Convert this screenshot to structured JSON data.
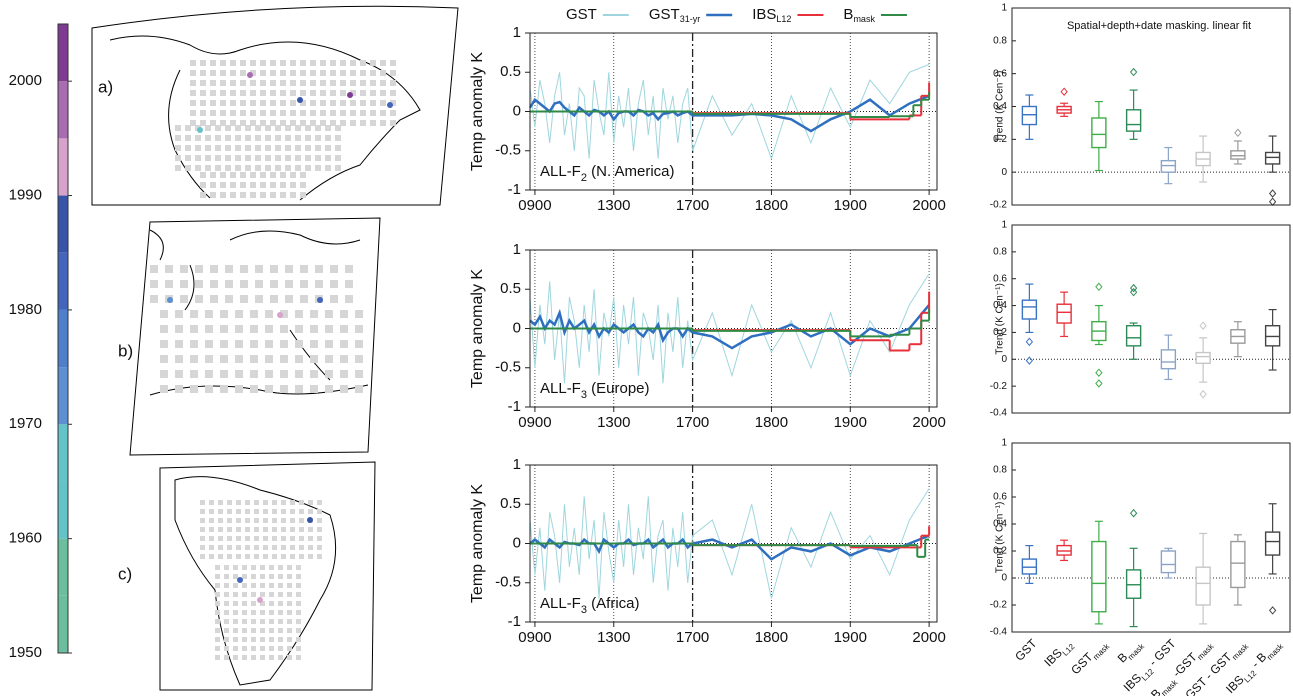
{
  "maps": [
    {
      "label": "a)"
    },
    {
      "label": "b)"
    },
    {
      "label": "c)"
    }
  ],
  "chart_data": [
    {
      "type": "colorbar",
      "lim": [
        1950,
        2005
      ],
      "ticks": [
        1950,
        1960,
        1970,
        1980,
        1990,
        2000
      ],
      "bounds": [
        1950,
        1955,
        1960,
        1965,
        1970,
        1975,
        1980,
        1985,
        1990,
        1995,
        2000,
        2005
      ],
      "colors": [
        "#6bbf9e",
        "#6bbf9e",
        "#64c3c8",
        "#64c3c8",
        "#5c90d2",
        "#4f7ecb",
        "#4366bc",
        "#3754a8",
        "#d7a3cc",
        "#a96cb0",
        "#7e3b91"
      ]
    },
    {
      "type": "line",
      "ylabel": "Temp anomaly K",
      "annotation": [
        {
          "t": "ALL-F",
          "sub": "2"
        },
        {
          "t": " (N. America)"
        }
      ],
      "legend": true,
      "xlim": [
        875,
        2010
      ],
      "ylim": [
        -1,
        1
      ],
      "xticks": [
        {
          "value": 900,
          "label": "0900"
        },
        1300,
        1700,
        1800,
        1900,
        2000
      ],
      "yticks": [
        -1,
        -0.5,
        0,
        0.5,
        1
      ],
      "dashdot_x": 1700,
      "zero_line": true,
      "x": [
        875,
        900,
        925,
        950,
        975,
        1000,
        1025,
        1050,
        1075,
        1100,
        1125,
        1150,
        1175,
        1200,
        1225,
        1250,
        1275,
        1300,
        1325,
        1350,
        1375,
        1400,
        1425,
        1450,
        1475,
        1500,
        1525,
        1550,
        1575,
        1600,
        1625,
        1650,
        1675,
        1700,
        1725,
        1750,
        1775,
        1800,
        1825,
        1850,
        1875,
        1900,
        1925,
        1950,
        1975,
        2000
      ],
      "series": [
        {
          "name": "GST",
          "color": "#9fd6de",
          "width": 1,
          "values": [
            0.3,
            -0.2,
            0.4,
            0.1,
            -0.4,
            0.2,
            0.5,
            -0.3,
            0.1,
            -0.5,
            0.3,
            0.2,
            -0.6,
            0.4,
            0.0,
            -0.3,
            0.5,
            -0.4,
            0.2,
            -0.2,
            0.3,
            -0.5,
            0.1,
            0.4,
            -0.3,
            0.2,
            -0.6,
            0.3,
            -0.1,
            0.2,
            -0.4,
            0.1,
            0.3,
            -0.5,
            0.2,
            -0.3,
            0.1,
            -0.6,
            0.2,
            -0.4,
            0.3,
            -0.2,
            0.4,
            0.1,
            0.5,
            0.6
          ]
        },
        {
          "name": "GST",
          "name_sub": "31-yr",
          "color": "#2f6fc0",
          "width": 2.5,
          "values": [
            0.05,
            0.15,
            0.1,
            0.05,
            0.0,
            0.1,
            0.12,
            0.05,
            0.0,
            -0.05,
            0.05,
            0.0,
            -0.05,
            0.02,
            0.0,
            -0.05,
            0.0,
            -0.1,
            -0.02,
            0.0,
            0.0,
            -0.05,
            0.02,
            0.0,
            -0.05,
            -0.02,
            -0.1,
            -0.03,
            -0.02,
            0.0,
            -0.05,
            -0.02,
            0.0,
            -0.05,
            -0.05,
            -0.05,
            -0.03,
            -0.05,
            -0.1,
            -0.25,
            -0.1,
            0.0,
            0.15,
            -0.05,
            0.1,
            0.2
          ]
        },
        {
          "name": "IBS",
          "name_sub": "L12",
          "color": "#e8303a",
          "width": 2,
          "step": true,
          "x": [
            875,
            1700,
            1900,
            1950,
            1975,
            1990,
            2000
          ],
          "values": [
            0,
            -0.02,
            -0.1,
            -0.1,
            -0.05,
            0.2,
            0.37
          ]
        },
        {
          "name": "B",
          "name_sub": "mask",
          "color": "#2f8a45",
          "width": 2,
          "step": true,
          "x": [
            875,
            1700,
            1900,
            1950,
            1980,
            1990,
            2000
          ],
          "values": [
            0,
            -0.03,
            -0.07,
            -0.06,
            0.08,
            0.15,
            0.25
          ]
        }
      ]
    },
    {
      "type": "line",
      "ylabel": "Temp anomaly K",
      "annotation": [
        {
          "t": "ALL-F",
          "sub": "3"
        },
        {
          "t": " (Europe)"
        }
      ],
      "xlim": [
        875,
        2010
      ],
      "ylim": [
        -1,
        1
      ],
      "xticks": [
        {
          "value": 900,
          "label": "0900"
        },
        1300,
        1700,
        1800,
        1900,
        2000
      ],
      "yticks": [
        -1,
        -0.5,
        0,
        0.5,
        1
      ],
      "dashdot_x": 1700,
      "zero_line": true,
      "x": [
        875,
        900,
        925,
        950,
        975,
        1000,
        1025,
        1050,
        1075,
        1100,
        1125,
        1150,
        1175,
        1200,
        1225,
        1250,
        1275,
        1300,
        1325,
        1350,
        1375,
        1400,
        1425,
        1450,
        1475,
        1500,
        1525,
        1550,
        1575,
        1600,
        1625,
        1650,
        1675,
        1700,
        1725,
        1750,
        1775,
        1800,
        1825,
        1850,
        1875,
        1900,
        1925,
        1950,
        1975,
        2000
      ],
      "series": [
        {
          "name": "GST",
          "color": "#9fd6de",
          "width": 1,
          "values": [
            0.4,
            -0.5,
            0.3,
            -0.2,
            0.6,
            -0.4,
            0.2,
            -0.7,
            0.4,
            0.1,
            -0.5,
            0.3,
            -0.3,
            0.5,
            -0.6,
            0.2,
            -0.1,
            0.4,
            -0.5,
            0.3,
            -0.2,
            0.4,
            -0.6,
            0.2,
            0.0,
            -0.4,
            0.3,
            -0.7,
            0.2,
            -0.3,
            0.4,
            -0.5,
            0.1,
            -0.4,
            0.2,
            -0.6,
            0.3,
            -0.3,
            0.1,
            -0.5,
            0.2,
            -0.6,
            0.1,
            -0.3,
            0.3,
            0.7
          ]
        },
        {
          "name": "GST",
          "name_sub": "31-yr",
          "color": "#2f6fc0",
          "width": 2.5,
          "values": [
            0.1,
            0.05,
            0.15,
            0.0,
            0.1,
            0.05,
            0.2,
            -0.05,
            0.1,
            0.0,
            0.05,
            0.1,
            -0.05,
            0.05,
            -0.1,
            0.0,
            -0.05,
            0.05,
            0.0,
            -0.05,
            0.0,
            0.05,
            -0.05,
            -0.1,
            0.0,
            -0.05,
            0.05,
            -0.15,
            -0.05,
            0.0,
            0.0,
            -0.1,
            0.0,
            -0.05,
            -0.1,
            -0.25,
            -0.1,
            -0.05,
            0.05,
            -0.1,
            0.0,
            -0.2,
            0.0,
            -0.1,
            0.0,
            0.3
          ]
        },
        {
          "name": "IBS",
          "name_sub": "L12",
          "color": "#e8303a",
          "width": 2,
          "step": true,
          "x": [
            875,
            1700,
            1900,
            1950,
            1975,
            1990,
            2000
          ],
          "values": [
            0,
            -0.02,
            -0.15,
            -0.28,
            -0.2,
            0.2,
            0.47
          ]
        },
        {
          "name": "B",
          "name_sub": "mask",
          "color": "#2f8a45",
          "width": 2,
          "step": true,
          "x": [
            875,
            1700,
            1900,
            1950,
            1975,
            1990,
            2000
          ],
          "values": [
            0,
            -0.03,
            -0.1,
            -0.08,
            0.0,
            0.1,
            0.25
          ]
        }
      ]
    },
    {
      "type": "line",
      "ylabel": "Temp anomaly K",
      "annotation": [
        {
          "t": "ALL-F",
          "sub": "3"
        },
        {
          "t": " (Africa)"
        }
      ],
      "xlim": [
        875,
        2010
      ],
      "ylim": [
        -1,
        1
      ],
      "xticks": [
        {
          "value": 900,
          "label": "0900"
        },
        1300,
        1700,
        1800,
        1900,
        2000
      ],
      "yticks": [
        -1,
        -0.5,
        0,
        0.5,
        1
      ],
      "dashdot_x": 1700,
      "zero_line": true,
      "x": [
        875,
        900,
        925,
        950,
        975,
        1000,
        1025,
        1050,
        1075,
        1100,
        1125,
        1150,
        1175,
        1200,
        1225,
        1250,
        1275,
        1300,
        1325,
        1350,
        1375,
        1400,
        1425,
        1450,
        1475,
        1500,
        1525,
        1550,
        1575,
        1600,
        1625,
        1650,
        1675,
        1700,
        1725,
        1750,
        1775,
        1800,
        1825,
        1850,
        1875,
        1900,
        1925,
        1950,
        1975,
        2000
      ],
      "series": [
        {
          "name": "GST",
          "color": "#9fd6de",
          "width": 1,
          "values": [
            0.3,
            -0.4,
            0.2,
            -0.6,
            0.4,
            0.1,
            -0.5,
            0.5,
            -0.3,
            0.2,
            -0.4,
            0.6,
            -0.2,
            0.3,
            -0.7,
            0.4,
            -0.1,
            -0.5,
            0.3,
            -0.3,
            0.5,
            -0.4,
            0.2,
            -0.2,
            0.6,
            -0.5,
            0.1,
            0.3,
            -0.6,
            0.2,
            -0.3,
            0.4,
            -0.5,
            0.1,
            0.3,
            -0.4,
            0.5,
            -0.7,
            0.2,
            -0.3,
            0.4,
            -0.2,
            0.1,
            -0.4,
            0.3,
            0.7
          ]
        },
        {
          "name": "GST",
          "name_sub": "31-yr",
          "color": "#2f6fc0",
          "width": 2.5,
          "values": [
            0.0,
            0.05,
            0.0,
            -0.05,
            0.05,
            0.0,
            -0.05,
            0.02,
            0.0,
            0.0,
            -0.02,
            0.05,
            0.0,
            0.0,
            -0.1,
            0.05,
            0.0,
            -0.05,
            0.0,
            0.0,
            0.05,
            -0.02,
            0.0,
            0.0,
            0.05,
            -0.05,
            0.0,
            0.05,
            -0.05,
            0.0,
            0.0,
            0.05,
            -0.05,
            0.0,
            0.05,
            -0.05,
            0.05,
            -0.2,
            -0.05,
            -0.1,
            0.0,
            -0.15,
            -0.05,
            -0.1,
            0.0,
            0.1
          ]
        },
        {
          "name": "IBS",
          "name_sub": "L12",
          "color": "#e8303a",
          "width": 2,
          "step": true,
          "x": [
            875,
            1700,
            1900,
            1975,
            1990,
            2000
          ],
          "values": [
            0,
            -0.02,
            -0.05,
            -0.05,
            0.1,
            0.22
          ]
        },
        {
          "name": "B",
          "name_sub": "mask",
          "color": "#2f8a45",
          "width": 2,
          "step": true,
          "x": [
            875,
            1700,
            1900,
            1975,
            1985,
            1995,
            2000
          ],
          "values": [
            0,
            -0.02,
            -0.03,
            -0.02,
            -0.17,
            0.05,
            0.05
          ]
        }
      ]
    },
    {
      "type": "box",
      "title": "Spatial+depth+date masking.  linear fit",
      "ylabel": "Trend (K Cen⁻¹)",
      "ylim": [
        -0.2,
        1
      ],
      "yticks": [
        -0.2,
        0,
        0.2,
        0.4,
        0.6,
        0.8,
        1
      ],
      "zero_line": true,
      "colors": [
        "#3a73c3",
        "#e8303a",
        "#3fae49",
        "#2b8a56",
        "#8aa4c8",
        "#c6c6c6",
        "#9a9a9a",
        "#444444"
      ],
      "boxes": [
        {
          "min": 0.2,
          "q1": 0.29,
          "median": 0.35,
          "q3": 0.4,
          "max": 0.47
        },
        {
          "min": 0.34,
          "q1": 0.36,
          "median": 0.38,
          "q3": 0.4,
          "max": 0.42,
          "outliers": [
            0.49
          ]
        },
        {
          "min": 0.01,
          "q1": 0.15,
          "median": 0.23,
          "q3": 0.33,
          "max": 0.43
        },
        {
          "min": 0.2,
          "q1": 0.25,
          "median": 0.29,
          "q3": 0.38,
          "max": 0.5,
          "outliers": [
            0.61
          ]
        },
        {
          "min": -0.07,
          "q1": 0.0,
          "median": 0.04,
          "q3": 0.07,
          "max": 0.15
        },
        {
          "min": -0.06,
          "q1": 0.04,
          "median": 0.08,
          "q3": 0.12,
          "max": 0.22
        },
        {
          "min": 0.05,
          "q1": 0.08,
          "median": 0.1,
          "q3": 0.13,
          "max": 0.19,
          "outliers": [
            0.24
          ]
        },
        {
          "min": 0.0,
          "q1": 0.05,
          "median": 0.09,
          "q3": 0.12,
          "max": 0.22,
          "outliers": [
            -0.13,
            -0.18
          ]
        }
      ]
    },
    {
      "type": "box",
      "ylabel": "Trend (K Cen⁻¹)",
      "ylim": [
        -0.4,
        1
      ],
      "yticks": [
        -0.4,
        -0.2,
        0,
        0.2,
        0.4,
        0.6,
        0.8,
        1
      ],
      "zero_line": true,
      "colors": [
        "#3a73c3",
        "#e8303a",
        "#3fae49",
        "#2b8a56",
        "#8aa4c8",
        "#c6c6c6",
        "#9a9a9a",
        "#444444"
      ],
      "boxes": [
        {
          "min": 0.2,
          "q1": 0.3,
          "median": 0.39,
          "q3": 0.44,
          "max": 0.56,
          "outliers": [
            0.13,
            -0.01
          ]
        },
        {
          "min": 0.17,
          "q1": 0.27,
          "median": 0.35,
          "q3": 0.41,
          "max": 0.5
        },
        {
          "min": 0.11,
          "q1": 0.14,
          "median": 0.21,
          "q3": 0.28,
          "max": 0.4,
          "outliers": [
            0.54,
            -0.1,
            -0.18
          ]
        },
        {
          "min": 0.0,
          "q1": 0.1,
          "median": 0.16,
          "q3": 0.25,
          "max": 0.27,
          "outliers": [
            0.5,
            0.53
          ]
        },
        {
          "min": -0.15,
          "q1": -0.07,
          "median": -0.02,
          "q3": 0.07,
          "max": 0.18
        },
        {
          "min": -0.17,
          "q1": -0.03,
          "median": 0.02,
          "q3": 0.05,
          "max": 0.16,
          "outliers": [
            0.25,
            -0.26
          ]
        },
        {
          "min": 0.02,
          "q1": 0.12,
          "median": 0.17,
          "q3": 0.22,
          "max": 0.28
        },
        {
          "min": -0.08,
          "q1": 0.1,
          "median": 0.17,
          "q3": 0.25,
          "max": 0.37
        }
      ]
    },
    {
      "type": "box",
      "ylabel": "Trend (K Cen⁻¹)",
      "ylim": [
        -0.4,
        1
      ],
      "yticks": [
        -0.4,
        -0.2,
        0,
        0.2,
        0.4,
        0.6,
        0.8,
        1
      ],
      "zero_line": true,
      "colors": [
        "#3a73c3",
        "#e8303a",
        "#3fae49",
        "#2b8a56",
        "#8aa4c8",
        "#c6c6c6",
        "#9a9a9a",
        "#444444"
      ],
      "categories": [
        [
          {
            "t": "GST"
          }
        ],
        [
          {
            "t": "IBS",
            "sub": "L12"
          }
        ],
        [
          {
            "t": "GST",
            "sub": "mask"
          }
        ],
        [
          {
            "t": "B",
            "sub": "mask"
          }
        ],
        [
          {
            "t": "IBS",
            "sub": "L12"
          },
          {
            "t": " - GST"
          }
        ],
        [
          {
            "t": "B",
            "sub": "mask"
          },
          {
            "t": " -GST",
            "sub": "mask"
          }
        ],
        [
          {
            "t": "GST - GST",
            "sub": "mask"
          }
        ],
        [
          {
            "t": "IBS",
            "sub": "L12"
          },
          {
            "t": " - B",
            "sub": "mask"
          }
        ]
      ],
      "boxes": [
        {
          "min": -0.04,
          "q1": 0.03,
          "median": 0.08,
          "q3": 0.14,
          "max": 0.24
        },
        {
          "min": 0.13,
          "q1": 0.17,
          "median": 0.2,
          "q3": 0.24,
          "max": 0.28
        },
        {
          "min": -0.34,
          "q1": -0.25,
          "median": -0.04,
          "q3": 0.27,
          "max": 0.42
        },
        {
          "min": -0.36,
          "q1": -0.15,
          "median": -0.05,
          "q3": 0.06,
          "max": 0.22,
          "outliers": [
            0.48
          ]
        },
        {
          "min": 0.0,
          "q1": 0.04,
          "median": 0.1,
          "q3": 0.2,
          "max": 0.22
        },
        {
          "min": -0.34,
          "q1": -0.2,
          "median": -0.04,
          "q3": 0.08,
          "max": 0.33
        },
        {
          "min": -0.2,
          "q1": -0.07,
          "median": 0.11,
          "q3": 0.27,
          "max": 0.32
        },
        {
          "min": 0.03,
          "q1": 0.17,
          "median": 0.27,
          "q3": 0.34,
          "max": 0.55,
          "outliers": [
            -0.24
          ]
        }
      ]
    }
  ]
}
